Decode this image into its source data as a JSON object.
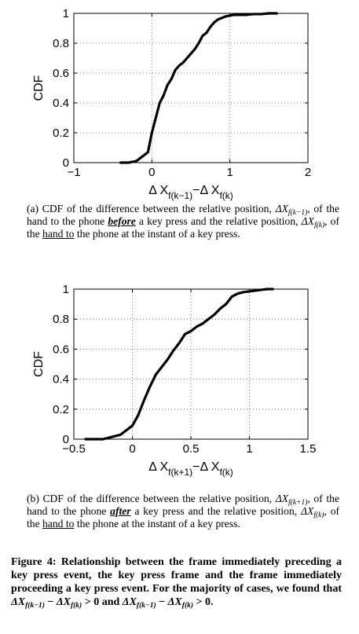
{
  "chart_data": [
    {
      "type": "line",
      "ylabel": "CDF",
      "xlabel_main": "Δ X",
      "xlabel_sub1": "f(k−1)",
      "xlabel_mid": "−Δ X",
      "xlabel_sub2": "f(k)",
      "xlim": [
        -1,
        2
      ],
      "ylim": [
        0,
        1
      ],
      "xticks": [
        "−1",
        "0",
        "1",
        "2"
      ],
      "yticks": [
        "0",
        "0.2",
        "0.4",
        "0.6",
        "0.8",
        "1"
      ],
      "grid": true,
      "x": [
        -0.4,
        -0.3,
        -0.2,
        -0.15,
        -0.1,
        -0.05,
        0.0,
        0.05,
        0.1,
        0.15,
        0.2,
        0.25,
        0.3,
        0.35,
        0.4,
        0.45,
        0.5,
        0.55,
        0.6,
        0.65,
        0.7,
        0.75,
        0.8,
        0.85,
        0.9,
        0.95,
        1.0,
        1.05,
        1.1,
        1.2,
        1.3,
        1.4,
        1.5,
        1.6
      ],
      "y": [
        0.0,
        0.0,
        0.01,
        0.03,
        0.05,
        0.07,
        0.2,
        0.3,
        0.4,
        0.45,
        0.52,
        0.56,
        0.62,
        0.65,
        0.67,
        0.7,
        0.73,
        0.76,
        0.8,
        0.85,
        0.87,
        0.91,
        0.94,
        0.96,
        0.97,
        0.98,
        0.985,
        0.99,
        0.99,
        0.99,
        0.995,
        0.995,
        1.0,
        1.0
      ]
    },
    {
      "type": "line",
      "ylabel": "CDF",
      "xlabel_main": "Δ X",
      "xlabel_sub1": "f(k+1)",
      "xlabel_mid": "−Δ X",
      "xlabel_sub2": "f(k)",
      "xlim": [
        -0.5,
        1.5
      ],
      "ylim": [
        0,
        1
      ],
      "xticks": [
        "−0.5",
        "0",
        "0.5",
        "1",
        "1.5"
      ],
      "yticks": [
        "0",
        "0.2",
        "0.4",
        "0.6",
        "0.8",
        "1"
      ],
      "grid": true,
      "x": [
        -0.4,
        -0.3,
        -0.25,
        -0.2,
        -0.15,
        -0.1,
        -0.05,
        0.0,
        0.05,
        0.1,
        0.15,
        0.2,
        0.25,
        0.3,
        0.35,
        0.4,
        0.45,
        0.5,
        0.55,
        0.6,
        0.65,
        0.7,
        0.75,
        0.8,
        0.85,
        0.9,
        0.95,
        1.0,
        1.05,
        1.1,
        1.15,
        1.2
      ],
      "y": [
        0.0,
        0.0,
        0.0,
        0.01,
        0.02,
        0.03,
        0.06,
        0.09,
        0.16,
        0.26,
        0.35,
        0.43,
        0.48,
        0.53,
        0.59,
        0.64,
        0.7,
        0.72,
        0.75,
        0.77,
        0.8,
        0.83,
        0.87,
        0.9,
        0.95,
        0.97,
        0.98,
        0.985,
        0.99,
        0.995,
        1.0,
        1.0
      ]
    }
  ],
  "captions": {
    "a": {
      "p1": "(a) CDF of the difference between the relative position, ",
      "m1": "ΔX",
      "m1sub": "f(k−1)",
      "p2": ", of the hand to the phone ",
      "em": "before",
      "p3": " a key press and the relative position, ",
      "m2": "ΔX",
      "m2sub": "f(k)",
      "p4": ", of the ",
      "ul": "hand to",
      "p5": " the phone at the instant of a key press."
    },
    "b": {
      "p1": "(b) CDF of the difference between the relative position, ",
      "m1": "ΔX",
      "m1sub": "f(k+1)",
      "p2": ", of the hand to the phone ",
      "em": "after",
      "p3": " a key press and the relative position, ",
      "m2": "ΔX",
      "m2sub": "f(k)",
      "p4": ", of the ",
      "ul": "hand to",
      "p5": " the phone at the instant of a key press."
    }
  },
  "figure_caption": {
    "p1": "Figure 4: Relationship between the frame immediately preceding a key press event, the key press frame and the frame immediately proceeding a key press event. For the majority of cases, we found that ",
    "m1": "ΔX",
    "m1sub": "f(k−1)",
    "op1": " − ",
    "m2": "ΔX",
    "m2sub": "f(k)",
    "rel1": " > 0",
    "p2": " and ",
    "m3": "ΔX",
    "m3sub": "f(k−1)",
    "op2": " − ",
    "m4": "ΔX",
    "m4sub": "f(k)",
    "rel2": " > 0."
  }
}
